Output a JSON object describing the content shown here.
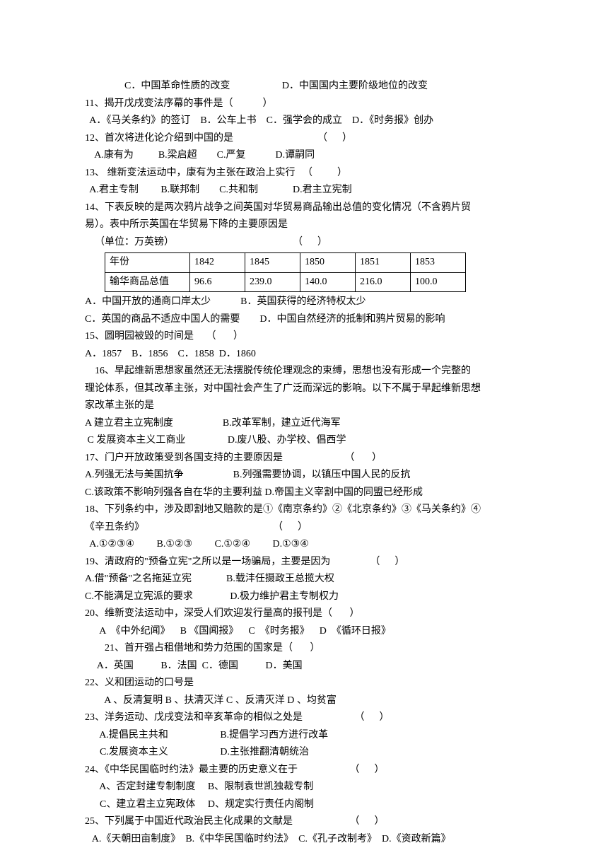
{
  "q10_partC": "C．中国革命性质的改变",
  "q10_partD": "D．中国国内主要阶级地位的改变",
  "q11_text": "11、揭开戊戌变法序幕的事件是（　　　）",
  "q11_opts": "  A．《马关条约》的签订    B．公车上书    C．强学会的成立    D．《时务报》创办",
  "q12_text": "12、首次将进化论介绍到中国的是                                  （      ）",
  "q12_opts": "    A.康有为          B.梁启超        C.严复            D.谭嗣同",
  "q13_text": "13、 维新变法运动中，康有为主张在政治上实行   （          ）",
  "q13_opts": "  A.君主专制         B.联邦制        C.共和制              D.君主立宪制",
  "q14_text1": "14、下表反映的是两次鸦片战争之间英国对华贸易商品输出总值的变化情况（不含鸦片贸",
  "q14_text2": "易）。表中所示英国在华贸易下降的主要原因是",
  "q14_unit": "    （单位：万英镑）                                                （      ）",
  "table": {
    "header_label": "年份",
    "years": [
      "1842",
      "1845",
      "1850",
      "1851",
      "1853"
    ],
    "row_label": "输华商品总值",
    "values": [
      "96.6",
      "239.0",
      "140.0",
      "216.0",
      "100.0"
    ]
  },
  "q14_optA": "A．中国开放的通商口岸太少            B．英国获得的经济特权太少",
  "q14_optC": "C．英国的商品不适应中国人的需要        D．中国自然经济的抵制和鸦片贸易的影响",
  "q15_text": "15、圆明园被毁的时间是     （       ）",
  "q15_opts": "A．1857    B．1856    C．1858  D．1860",
  "q16_text1": "    16、早起维新思想家虽然还无法摆脱传统伦理观念的束缚，思想也没有形成一个完整的",
  "q16_text2": "理论体系，但其改革主张，对中国社会产生了广泛而深远的影响。以下不属于早起维新思想",
  "q16_text3": "家改革主张的是",
  "q16_optA": "A 建立君主立宪制度                    B.改革军制，建立近代海军",
  "q16_optC": " C 发展资本主义工商业                 D.废八股、办学校、倡西学",
  "q17_text": "17、门户开放政策受到各国支持的主要原因是                         （       ）",
  "q17_optA": "A.列强无法与美国抗争                    B.列强需要协调，以镇压中国人民的反抗",
  "q17_optC": "C.该政策不影响列强各自在华的主要利益 D.帝国主义宰割中国的同盟已经形成",
  "q18_text1": "18、下列条约中，涉及即割地又赔款的是①《南京条约》②《北京条约》③《马关条约》④",
  "q18_text2": "《辛丑条约》                                                    （      ）",
  "q18_opts": "  A.①②③④         B.①②③         C.①②④         D.①③④",
  "q19_text": "19、清政府的\"预备立宪\"之所以是一场骗局，主要是因为                （      ）",
  "q19_optA": "A.借\"预备\"之名拖延立宪              B.载沣任摄政王总揽大权",
  "q19_optC": "C.不能满足立宪派的要求               D.极力维护君主专制权力",
  "q20_text": "20、维新变法运动中，深受人们欢迎发行量高的报刊是（       ）",
  "q20_opts": "      A  《中外纪闻》    B 《国闻报》    C  《时务报》    D  《循环日报》",
  "q21_text": "        21、首开强占租借地和势力范围的国家是（       ）",
  "q21_opts": "     A．英国           B．法国  C．德国           D．美国",
  "q22_text": "22、义和团运动的口号是",
  "q22_opts": "        A 、反清复明 B 、扶清灭洋 C 、反清灭洋 D 、均贫富",
  "q23_text": "23、洋务运动、戊戌变法和辛亥革命的相似之处是                     （      ）",
  "q23_optA": "      A.提倡民主共和                     B.提倡学习西方进行改革",
  "q23_optC": "      C.发展资本主义                     D.主张推翻清朝统治",
  "q24_text": "24、《中华民国临时约法》最主要的历史意义在于                     （      ）",
  "q24_optA": "      A、否定封建专制制度     B、限制袁世凯独裁专制",
  "q24_optC": "      C、建立君主立宪政体     D、规定实行责任内阁制",
  "q25_text": "25、下列属于中国近代政治民主化成果的文献是                       （      ）",
  "q25_opts": "   A.《天朝田亩制度》  B.《中华民国临时约法》  C.《孔子改制考》  D.《资政新篇》"
}
